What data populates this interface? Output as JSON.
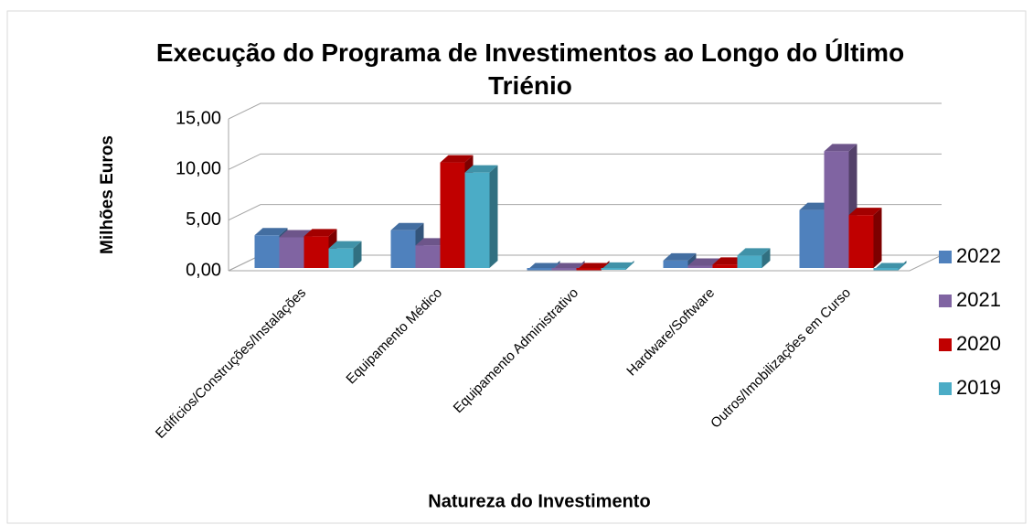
{
  "chart_data": {
    "type": "bar3d",
    "title": "Execução do Programa de Investimentos ao Longo do Último Triénio",
    "y_label": "Milhões Euros",
    "x_label": "Natureza do Investimento",
    "categories": [
      "Edifícios/Construções/Instalações",
      "Equipamento Médico",
      "Equipamento Administrativo",
      "Hardware/Software",
      "Outros/Imobilizações em Curso"
    ],
    "series": [
      {
        "name": "2022",
        "color": "#4f81bd",
        "values": [
          3.5,
          4.0,
          0.05,
          1.0,
          6.0
        ]
      },
      {
        "name": "2021",
        "color": "#8064a2",
        "values": [
          3.3,
          2.5,
          0.05,
          0.5,
          11.8
        ]
      },
      {
        "name": "2020",
        "color": "#c00000",
        "values": [
          3.4,
          10.7,
          0.05,
          0.6,
          5.5
        ]
      },
      {
        "name": "2019",
        "color": "#4bacc6",
        "values": [
          2.2,
          9.7,
          0.1,
          1.5,
          0.05
        ]
      }
    ],
    "ylim": [
      0,
      15
    ],
    "yticks": [
      {
        "value": 0,
        "label": "0,00"
      },
      {
        "value": 5,
        "label": "5,00"
      },
      {
        "value": 10,
        "label": "10,00"
      },
      {
        "value": 15,
        "label": "15,00"
      }
    ],
    "grid": true,
    "legend": "right"
  }
}
